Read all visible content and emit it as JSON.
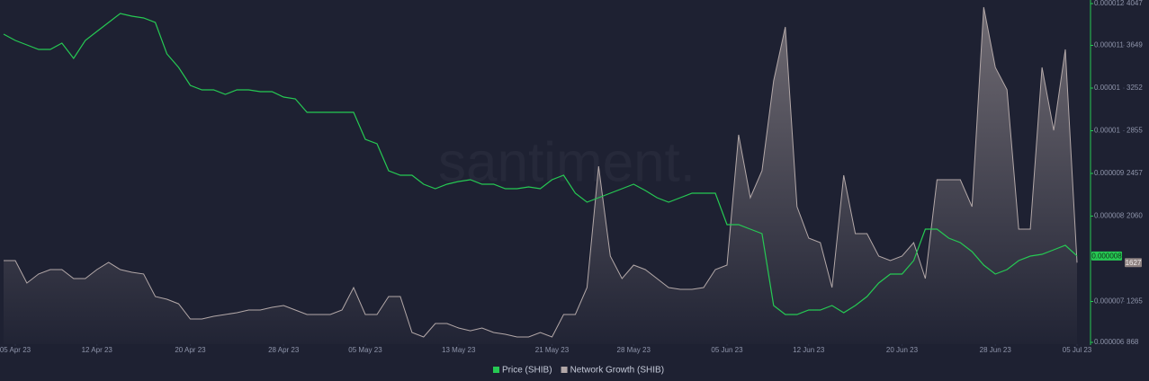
{
  "chart_data": {
    "type": "line",
    "watermark": "santiment.",
    "x": [
      "2023-04-04",
      "2023-04-05",
      "2023-04-06",
      "2023-04-07",
      "2023-04-08",
      "2023-04-09",
      "2023-04-10",
      "2023-04-11",
      "2023-04-12",
      "2023-04-13",
      "2023-04-14",
      "2023-04-15",
      "2023-04-16",
      "2023-04-17",
      "2023-04-18",
      "2023-04-19",
      "2023-04-20",
      "2023-04-21",
      "2023-04-22",
      "2023-04-23",
      "2023-04-24",
      "2023-04-25",
      "2023-04-26",
      "2023-04-27",
      "2023-04-28",
      "2023-04-29",
      "2023-04-30",
      "2023-05-01",
      "2023-05-02",
      "2023-05-03",
      "2023-05-04",
      "2023-05-05",
      "2023-05-06",
      "2023-05-07",
      "2023-05-08",
      "2023-05-09",
      "2023-05-10",
      "2023-05-11",
      "2023-05-12",
      "2023-05-13",
      "2023-05-14",
      "2023-05-15",
      "2023-05-16",
      "2023-05-17",
      "2023-05-18",
      "2023-05-19",
      "2023-05-20",
      "2023-05-21",
      "2023-05-22",
      "2023-05-23",
      "2023-05-24",
      "2023-05-25",
      "2023-05-26",
      "2023-05-27",
      "2023-05-28",
      "2023-05-29",
      "2023-05-30",
      "2023-05-31",
      "2023-06-01",
      "2023-06-02",
      "2023-06-03",
      "2023-06-04",
      "2023-06-05",
      "2023-06-06",
      "2023-06-07",
      "2023-06-08",
      "2023-06-09",
      "2023-06-10",
      "2023-06-11",
      "2023-06-12",
      "2023-06-13",
      "2023-06-14",
      "2023-06-15",
      "2023-06-16",
      "2023-06-17",
      "2023-06-18",
      "2023-06-19",
      "2023-06-20",
      "2023-06-21",
      "2023-06-22",
      "2023-06-23",
      "2023-06-24",
      "2023-06-25",
      "2023-06-26",
      "2023-06-27",
      "2023-06-28",
      "2023-06-29",
      "2023-06-30",
      "2023-07-01",
      "2023-07-02",
      "2023-07-03",
      "2023-07-04",
      "2023-07-05"
    ],
    "xlim": [
      "2023-04-04",
      "2023-07-05"
    ],
    "xticks": [
      {
        "value": "2023-04-05",
        "label": "05 Apr 23"
      },
      {
        "value": "2023-04-12",
        "label": "12 Apr 23"
      },
      {
        "value": "2023-04-20",
        "label": "20 Apr 23"
      },
      {
        "value": "2023-04-28",
        "label": "28 Apr 23"
      },
      {
        "value": "2023-05-05",
        "label": "05 May 23"
      },
      {
        "value": "2023-05-13",
        "label": "13 May 23"
      },
      {
        "value": "2023-05-21",
        "label": "21 May 23"
      },
      {
        "value": "2023-05-28",
        "label": "28 May 23"
      },
      {
        "value": "2023-06-05",
        "label": "05 Jun 23"
      },
      {
        "value": "2023-06-12",
        "label": "12 Jun 23"
      },
      {
        "value": "2023-06-20",
        "label": "20 Jun 23"
      },
      {
        "value": "2023-06-28",
        "label": "28 Jun 23"
      },
      {
        "value": "2023-07-05",
        "label": "05 Jul 23"
      }
    ],
    "ylim": [
      6e-06,
      1.2e-05
    ],
    "yticks": [
      1.2e-05,
      {
        "value": 1.125e-05,
        "label": "0.000011"
      },
      {
        "value": 1.05e-05,
        "label": "0.00001"
      },
      {
        "value": 9.75e-06,
        "label": "0.00001"
      },
      9e-06,
      {
        "value": 8.25e-06,
        "label": "0.000008"
      },
      {
        "value": 6.75e-06,
        "label": "0.000007"
      },
      6e-06
    ],
    "y2lim": [
      868,
      4047
    ],
    "y2ticks": [
      4047,
      3649,
      3252,
      2855,
      2457,
      2060,
      1265,
      868
    ],
    "series": [
      {
        "name": "Price (SHIB)",
        "color": "#26c953",
        "last_label": "0.000008",
        "values": [
          1.1447e-05,
          1.1337e-05,
          1.1258e-05,
          1.1179e-05,
          1.1179e-05,
          1.1289e-05,
          1.1021e-05,
          1.1337e-05,
          1.1495e-05,
          1.1653e-05,
          1.1811e-05,
          1.1763e-05,
          1.1732e-05,
          1.1653e-05,
          1.11e-05,
          1.0863e-05,
          1.0547e-05,
          1.0468e-05,
          1.0468e-05,
          1.0389e-05,
          1.0468e-05,
          1.0468e-05,
          1.0437e-05,
          1.0437e-05,
          1.0342e-05,
          1.0311e-05,
          1.0074e-05,
          1.0074e-05,
          1.0074e-05,
          1.0074e-05,
          1.0074e-05,
          9.6e-06,
          9.521e-06,
          9.047e-06,
          8.968e-06,
          8.968e-06,
          8.811e-06,
          8.732e-06,
          8.811e-06,
          8.858e-06,
          8.889e-06,
          8.811e-06,
          8.811e-06,
          8.732e-06,
          8.732e-06,
          8.763e-06,
          8.732e-06,
          8.889e-06,
          8.968e-06,
          8.653e-06,
          8.495e-06,
          8.574e-06,
          8.653e-06,
          8.732e-06,
          8.811e-06,
          8.7e-06,
          8.574e-06,
          8.495e-06,
          8.574e-06,
          8.653e-06,
          8.653e-06,
          8.653e-06,
          8.1e-06,
          8.1e-06,
          8.021e-06,
          7.942e-06,
          6.679e-06,
          6.521e-06,
          6.521e-06,
          6.6e-06,
          6.6e-06,
          6.679e-06,
          6.553e-06,
          6.679e-06,
          6.837e-06,
          7.074e-06,
          7.232e-06,
          7.232e-06,
          7.468e-06,
          8.021e-06,
          8.021e-06,
          7.863e-06,
          7.784e-06,
          7.626e-06,
          7.389e-06,
          7.232e-06,
          7.311e-06,
          7.468e-06,
          7.547e-06,
          7.579e-06,
          7.658e-06,
          7.737e-06,
          7.55e-06
        ]
      },
      {
        "name": "Network Growth (SHIB)",
        "color": "#b3a8a8",
        "axis": "y2",
        "last_label": "1627",
        "values": [
          1646,
          1646,
          1437,
          1521,
          1562,
          1562,
          1479,
          1479,
          1562,
          1629,
          1562,
          1537,
          1521,
          1311,
          1286,
          1244,
          1102,
          1102,
          1127,
          1144,
          1161,
          1186,
          1186,
          1211,
          1228,
          1186,
          1144,
          1144,
          1144,
          1186,
          1395,
          1144,
          1144,
          1311,
          1311,
          977,
          935,
          1060,
          1060,
          1019,
          993,
          1019,
          977,
          960,
          935,
          935,
          977,
          935,
          1144,
          1144,
          1395,
          2524,
          1688,
          1479,
          1604,
          1562,
          1479,
          1395,
          1378,
          1378,
          1395,
          1562,
          1604,
          2817,
          2232,
          2483,
          3319,
          3821,
          2148,
          1855,
          1813,
          1395,
          2441,
          1897,
          1897,
          1688,
          1646,
          1688,
          1813,
          1479,
          2399,
          2399,
          2399,
          2148,
          4005,
          3445,
          3236,
          1939,
          1939,
          3445,
          2859,
          3612,
          1627
        ]
      }
    ]
  }
}
